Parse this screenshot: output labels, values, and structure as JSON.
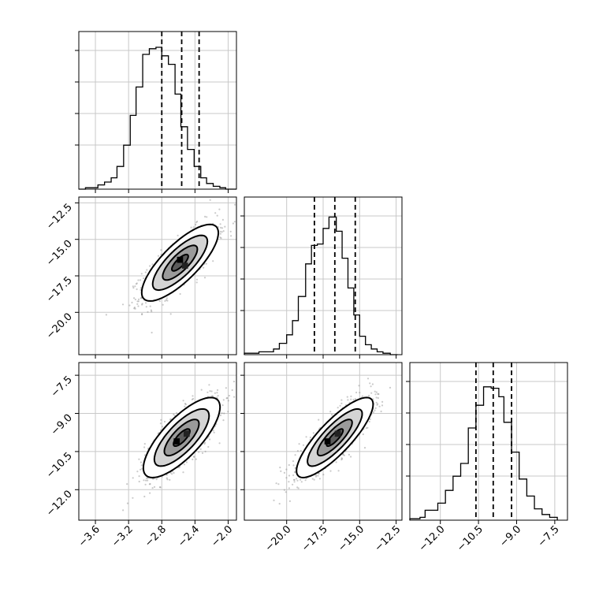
{
  "chart_data": {
    "type": "corner",
    "grid": true,
    "parameters": [
      {
        "range": [
          -3.8,
          -1.9
        ],
        "ticks": [
          -3.6,
          -3.2,
          -2.8,
          -2.4,
          -2.0
        ],
        "tick_labels": [
          "−3.6",
          "−3.2",
          "−2.8",
          "−2.4",
          "−2.0"
        ],
        "quantiles": [
          -2.8,
          -2.56,
          -2.35
        ],
        "hist": {
          "edges": [
            -3.8,
            -3.72,
            -3.65,
            -3.57,
            -3.49,
            -3.41,
            -3.34,
            -3.26,
            -3.18,
            -3.11,
            -3.03,
            -2.95,
            -2.87,
            -2.8,
            -2.72,
            -2.64,
            -2.57,
            -2.49,
            -2.41,
            -2.33,
            -2.26,
            -2.18,
            -2.1,
            -2.03,
            -1.95,
            -1.9
          ],
          "counts": [
            0,
            0.01,
            0.01,
            0.03,
            0.05,
            0.08,
            0.16,
            0.31,
            0.52,
            0.72,
            0.95,
            0.99,
            1.0,
            0.94,
            0.88,
            0.67,
            0.44,
            0.28,
            0.16,
            0.08,
            0.04,
            0.02,
            0.01,
            0.0,
            0.0
          ]
        }
      },
      {
        "range": [
          -22.9,
          -12.1
        ],
        "ticks": [
          -20.0,
          -17.5,
          -15.0,
          -12.5
        ],
        "tick_labels": [
          "−20.0",
          "−17.5",
          "−15.0",
          "−12.5"
        ],
        "quantiles": [
          -18.1,
          -16.7,
          -15.3
        ],
        "hist": {
          "edges": [
            -22.9,
            -21.9,
            -20.9,
            -20.5,
            -20.0,
            -19.6,
            -19.2,
            -18.7,
            -18.3,
            -17.9,
            -17.5,
            -17.1,
            -16.6,
            -16.2,
            -15.8,
            -15.4,
            -15.0,
            -14.6,
            -14.2,
            -13.8,
            -13.4,
            -12.9,
            -12.4
          ],
          "counts": [
            0.01,
            0.02,
            0.04,
            0.08,
            0.14,
            0.24,
            0.41,
            0.64,
            0.77,
            0.78,
            0.89,
            0.97,
            0.87,
            0.68,
            0.47,
            0.28,
            0.13,
            0.07,
            0.04,
            0.02,
            0.01,
            0.0
          ]
        }
      },
      {
        "range": [
          -13.2,
          -7.0
        ],
        "ticks": [
          -12.0,
          -10.5,
          -9.0,
          -7.5
        ],
        "tick_labels": [
          "−12.0",
          "−10.5",
          "−9.0",
          "−7.5"
        ],
        "quantiles": [
          -10.6,
          -9.92,
          -9.2
        ],
        "hist": {
          "edges": [
            -13.2,
            -12.8,
            -12.6,
            -12.1,
            -11.8,
            -11.5,
            -11.2,
            -10.9,
            -10.6,
            -10.3,
            -10.0,
            -9.7,
            -9.5,
            -9.2,
            -8.9,
            -8.6,
            -8.3,
            -8.0,
            -7.7,
            -7.4
          ],
          "counts": [
            0.01,
            0.02,
            0.07,
            0.12,
            0.21,
            0.31,
            0.4,
            0.65,
            0.81,
            0.94,
            0.93,
            0.87,
            0.69,
            0.48,
            0.29,
            0.17,
            0.08,
            0.04,
            0.02
          ]
        }
      }
    ],
    "pairs": [
      {
        "row": 1,
        "col": 0,
        "center": [
          -2.58,
          -16.6
        ],
        "spread": [
          0.22,
          1.25
        ],
        "rho": 0.78,
        "peak_cells": [
          [
            -2.58,
            -16.4
          ],
          [
            -2.52,
            -16.8
          ]
        ]
      },
      {
        "row": 2,
        "col": 0,
        "center": [
          -2.56,
          -9.95
        ],
        "spread": [
          0.22,
          0.75
        ],
        "rho": 0.76,
        "peak_cells": [
          [
            -2.62,
            -10.1
          ],
          [
            -2.5,
            -9.8
          ]
        ]
      },
      {
        "row": 2,
        "col": 1,
        "center": [
          -16.7,
          -9.95
        ],
        "spread": [
          1.25,
          0.75
        ],
        "rho": 0.83,
        "peak_cells": [
          [
            -17.2,
            -10.1
          ],
          [
            -16.5,
            -9.8
          ]
        ]
      }
    ]
  }
}
